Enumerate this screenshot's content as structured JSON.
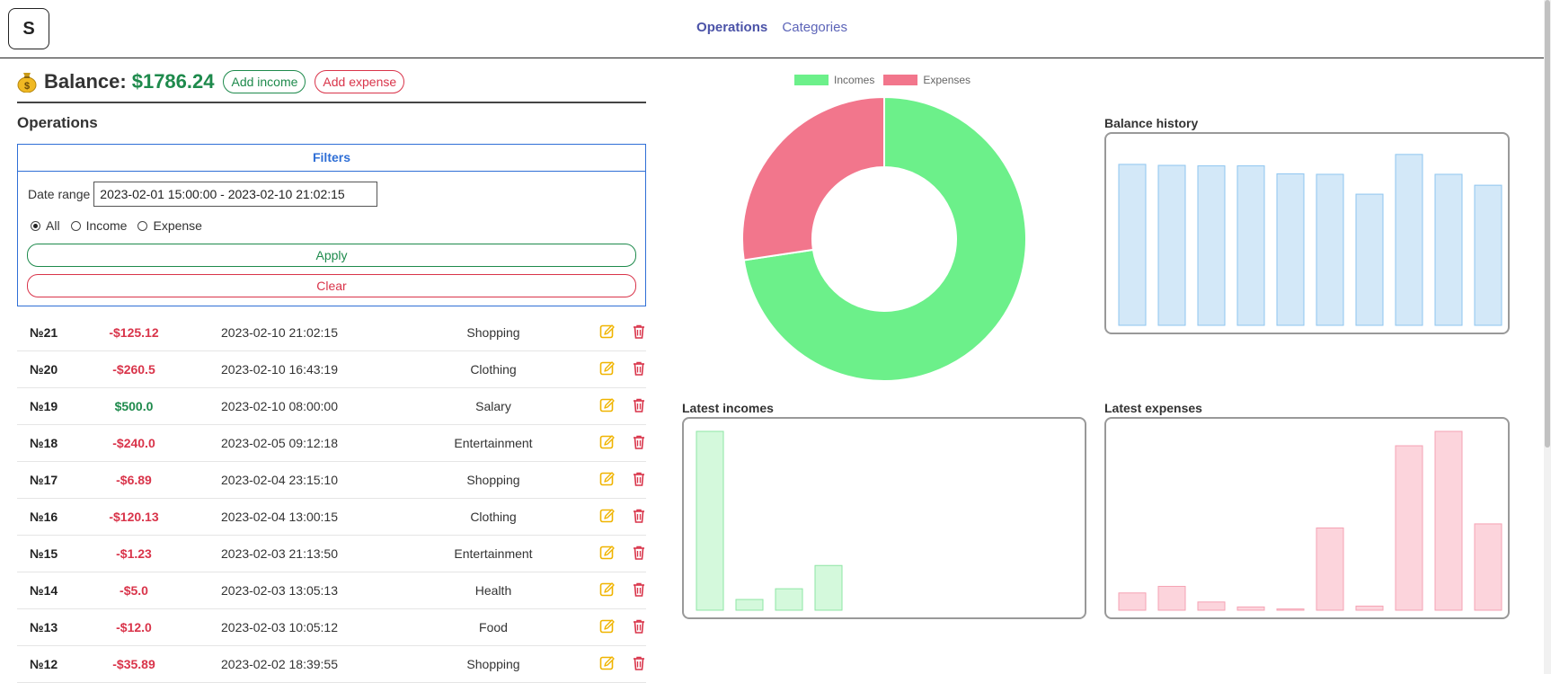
{
  "app": {
    "logo_letter": "S"
  },
  "nav": {
    "operations": "Operations",
    "categories": "Categories"
  },
  "balance": {
    "label": "Balance:",
    "value": "$1786.24",
    "add_income": "Add income",
    "add_expense": "Add expense"
  },
  "operations": {
    "title": "Operations",
    "filters": {
      "title": "Filters",
      "date_label": "Date range",
      "date_value": "2023-02-01 15:00:00 - 2023-02-10 21:02:15",
      "radio_all": "All",
      "radio_income": "Income",
      "radio_expense": "Expense",
      "selected": "All",
      "apply": "Apply",
      "clear": "Clear"
    },
    "rows": [
      {
        "id": "№21",
        "amount": "-$125.12",
        "date": "2023-02-10 21:02:15",
        "category": "Shopping",
        "type": "neg"
      },
      {
        "id": "№20",
        "amount": "-$260.5",
        "date": "2023-02-10 16:43:19",
        "category": "Clothing",
        "type": "neg"
      },
      {
        "id": "№19",
        "amount": "$500.0",
        "date": "2023-02-10 08:00:00",
        "category": "Salary",
        "type": "pos"
      },
      {
        "id": "№18",
        "amount": "-$240.0",
        "date": "2023-02-05 09:12:18",
        "category": "Entertainment",
        "type": "neg"
      },
      {
        "id": "№17",
        "amount": "-$6.89",
        "date": "2023-02-04 23:15:10",
        "category": "Shopping",
        "type": "neg"
      },
      {
        "id": "№16",
        "amount": "-$120.13",
        "date": "2023-02-04 13:00:15",
        "category": "Clothing",
        "type": "neg"
      },
      {
        "id": "№15",
        "amount": "-$1.23",
        "date": "2023-02-03 21:13:50",
        "category": "Entertainment",
        "type": "neg"
      },
      {
        "id": "№14",
        "amount": "-$5.0",
        "date": "2023-02-03 13:05:13",
        "category": "Health",
        "type": "neg"
      },
      {
        "id": "№13",
        "amount": "-$12.0",
        "date": "2023-02-03 10:05:12",
        "category": "Food",
        "type": "neg"
      },
      {
        "id": "№12",
        "amount": "-$35.89",
        "date": "2023-02-02 18:39:55",
        "category": "Shopping",
        "type": "neg"
      }
    ]
  },
  "colors": {
    "income": "#6cf08a",
    "expense": "#f2768c",
    "balance_fill": "#d3e8f8",
    "balance_stroke": "#8ec5ef",
    "inc_fill": "#d4f9dc",
    "inc_stroke": "#8ee6a4",
    "exp_fill": "#fcd4dc",
    "exp_stroke": "#f5a2b3"
  },
  "chart_data": [
    {
      "type": "pie",
      "title": "",
      "legend_position": "top",
      "series": [
        {
          "name": "Incomes",
          "value": 1000,
          "color": "#6cf08a"
        },
        {
          "name": "Expenses",
          "value": 377,
          "color": "#f2768c"
        }
      ]
    },
    {
      "type": "bar",
      "title": "Balance history",
      "values": [
        1620,
        1610,
        1605,
        1605,
        1525,
        1520,
        1320,
        1720,
        1520,
        1410
      ],
      "ylim": [
        0,
        1800
      ]
    },
    {
      "type": "bar",
      "title": "Latest incomes",
      "values": [
        500,
        30,
        60,
        125
      ],
      "ylim": [
        0,
        500
      ]
    },
    {
      "type": "bar",
      "title": "Latest expenses",
      "values": [
        42,
        58,
        20,
        8,
        3,
        200,
        10,
        400,
        435,
        210
      ],
      "ylim": [
        0,
        435
      ]
    }
  ]
}
